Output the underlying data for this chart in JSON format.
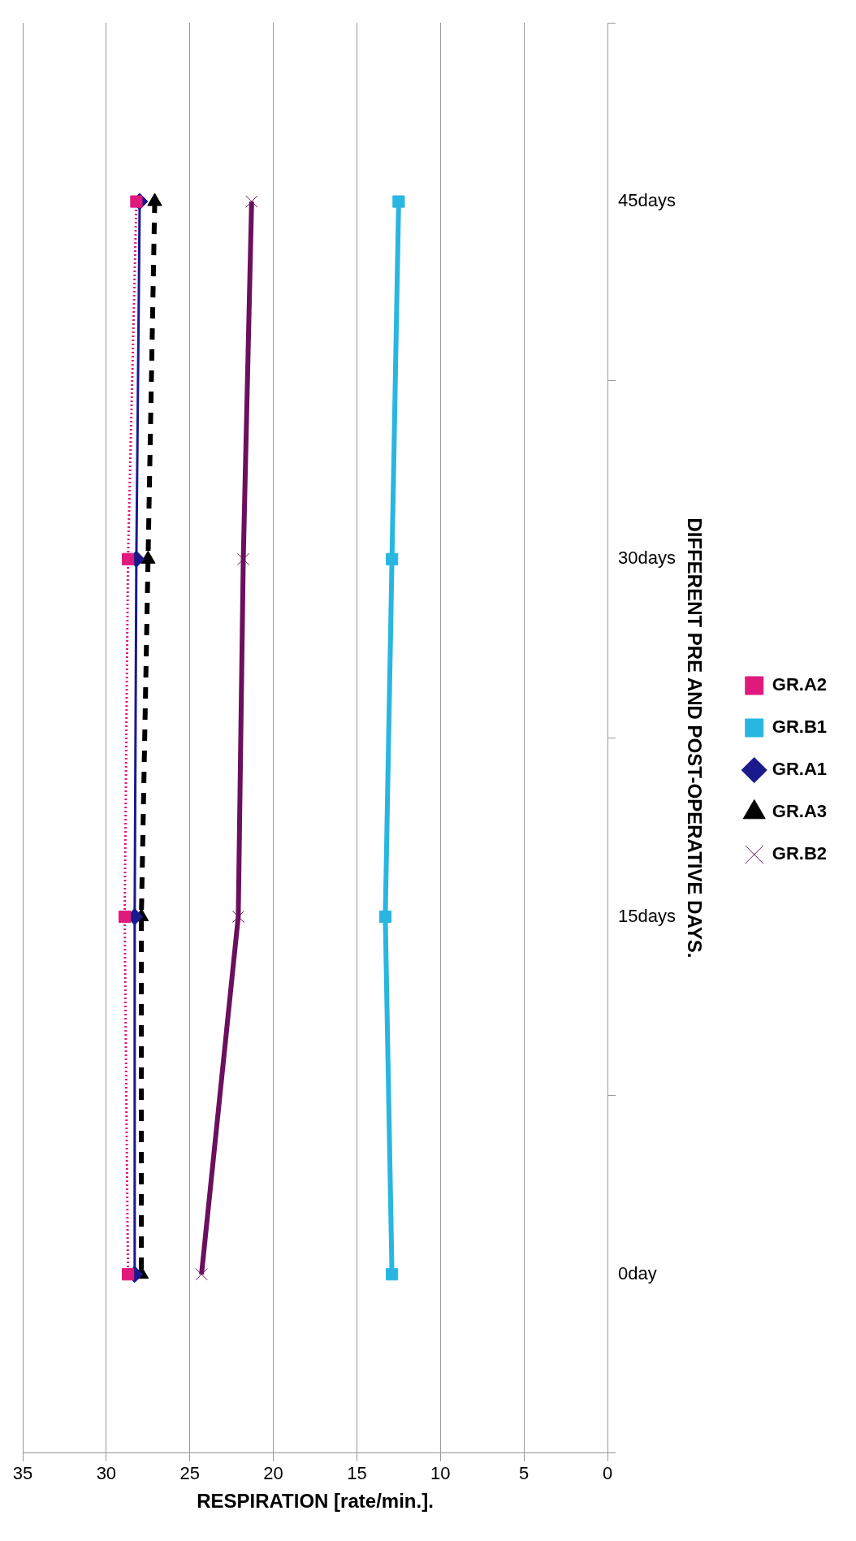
{
  "chart_data": {
    "type": "line",
    "orientation": "horizontal",
    "ylabel": "DIFFERENT PRE AND POST-OPERATIVE DAYS.",
    "xlabel": "RESPIRATION [rate/min.].",
    "categories": [
      "45days",
      "30days",
      "15days",
      "0day"
    ],
    "series": [
      {
        "name": "GR.A1",
        "color": "#1a1a8c",
        "marker": "diamond",
        "line_style": "solid",
        "values": [
          28.0,
          28.2,
          28.3,
          28.3
        ]
      },
      {
        "name": "GR.A2",
        "color": "#e0197d",
        "marker": "square",
        "line_style": "dotted",
        "values": [
          28.2,
          28.7,
          28.9,
          28.7
        ]
      },
      {
        "name": "GR.A3",
        "color": "#000000",
        "marker": "triangle",
        "line_style": "dashed",
        "values": [
          27.1,
          27.5,
          27.9,
          27.9
        ]
      },
      {
        "name": "GR.B1",
        "color": "#29b6e0",
        "marker": "square",
        "line_style": "solid",
        "values": [
          12.5,
          12.9,
          13.3,
          12.9
        ]
      },
      {
        "name": "GR.B2",
        "color": "#6b0f5e",
        "marker": "cross",
        "line_style": "solid",
        "values": [
          21.3,
          21.8,
          22.1,
          24.3
        ]
      }
    ],
    "xlim": [
      35,
      0
    ],
    "xticks": [
      35,
      30,
      25,
      20,
      15,
      10,
      5,
      0
    ],
    "grid": "x",
    "legend": "right"
  }
}
